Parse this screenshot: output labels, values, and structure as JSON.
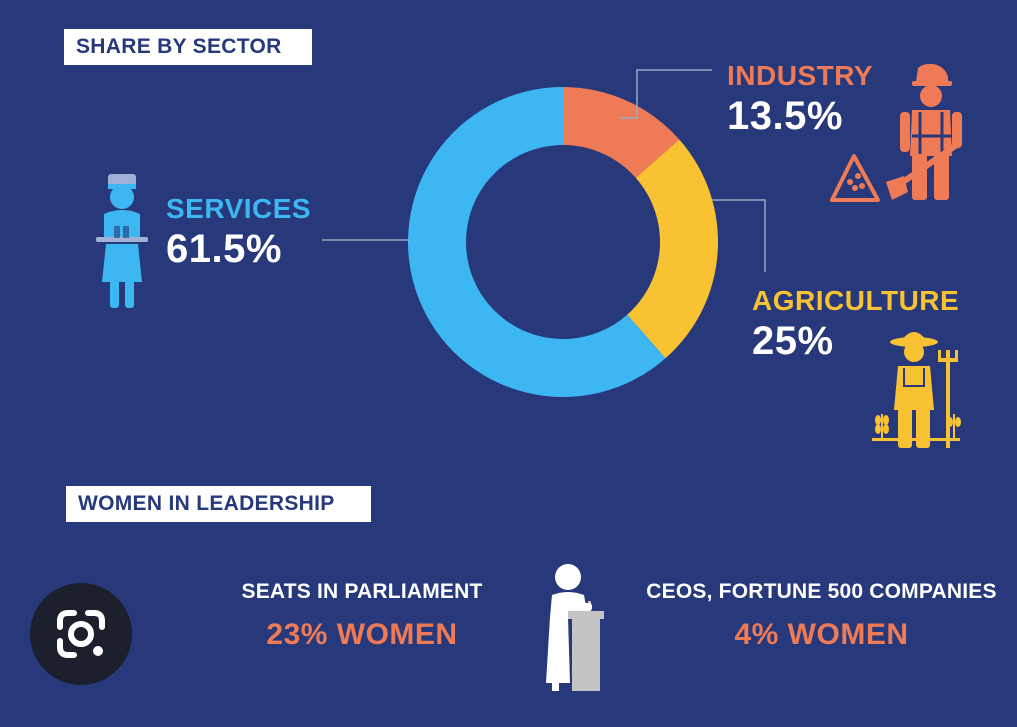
{
  "sector_section": {
    "title": "SHARE BY SECTOR"
  },
  "chart_data": {
    "type": "pie",
    "donut": true,
    "slices": [
      {
        "label": "INDUSTRY",
        "value": 13.5,
        "display": "13.5%",
        "color": "#ef7a56"
      },
      {
        "label": "AGRICULTURE",
        "value": 25,
        "display": "25%",
        "color": "#f8c232"
      },
      {
        "label": "SERVICES",
        "value": 61.5,
        "display": "61.5%",
        "color": "#3cb7f2"
      }
    ]
  },
  "leadership_section": {
    "title": "WOMEN IN LEADERSHIP",
    "stats": [
      {
        "label": "SEATS IN PARLIAMENT",
        "value": "23% WOMEN"
      },
      {
        "label": "CEOS, FORTUNE 500 COMPANIES",
        "value": "4% WOMEN"
      }
    ]
  },
  "icons": {
    "services": "waiter-icon",
    "industry": "construction-worker-icon",
    "agriculture": "farmer-icon",
    "leadership": "woman-at-podium-icon",
    "lens": "google-lens-icon"
  },
  "colors": {
    "background": "#27397a",
    "services": "#3cb7f2",
    "industry": "#ef7a56",
    "agriculture": "#f8c232",
    "podium": "#c4c4c4"
  }
}
